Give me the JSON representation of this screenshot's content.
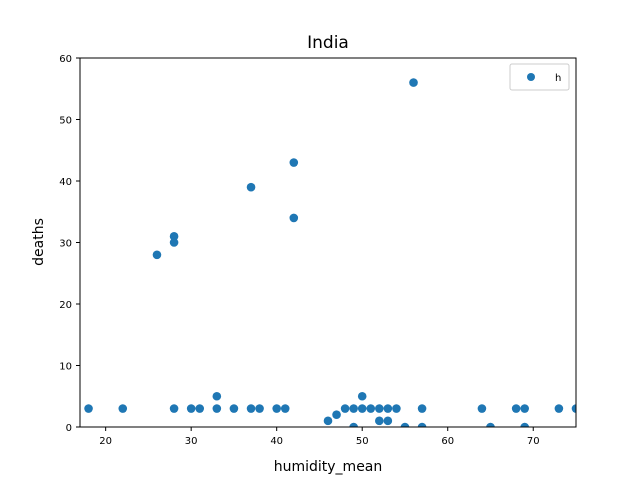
{
  "chart_data": {
    "type": "scatter",
    "title": "India",
    "xlabel": "humidity_mean",
    "ylabel": "deaths",
    "xlim": [
      17,
      75
    ],
    "ylim": [
      0,
      60
    ],
    "xticks": [
      "20",
      "30",
      "40",
      "50",
      "60",
      "70"
    ],
    "yticks": [
      "0",
      "10",
      "20",
      "30",
      "40",
      "50",
      "60"
    ],
    "grid": false,
    "legend": "top-right",
    "series": [
      {
        "name": "h",
        "color": "#1f77b4",
        "points": [
          [
            18,
            3
          ],
          [
            22,
            3
          ],
          [
            26,
            28
          ],
          [
            28,
            31
          ],
          [
            28,
            30
          ],
          [
            28,
            3
          ],
          [
            30,
            3
          ],
          [
            31,
            3
          ],
          [
            33,
            5
          ],
          [
            33,
            3
          ],
          [
            35,
            3
          ],
          [
            37,
            39
          ],
          [
            37,
            3
          ],
          [
            38,
            3
          ],
          [
            40,
            3
          ],
          [
            41,
            3
          ],
          [
            42,
            43
          ],
          [
            42,
            34
          ],
          [
            46,
            1
          ],
          [
            47,
            2
          ],
          [
            48,
            3
          ],
          [
            49,
            3
          ],
          [
            49,
            0
          ],
          [
            50,
            5
          ],
          [
            50,
            3
          ],
          [
            51,
            3
          ],
          [
            52,
            3
          ],
          [
            52,
            1
          ],
          [
            53,
            3
          ],
          [
            53,
            1
          ],
          [
            54,
            3
          ],
          [
            55,
            0
          ],
          [
            56,
            56
          ],
          [
            57,
            3
          ],
          [
            57,
            0
          ],
          [
            64,
            3
          ],
          [
            65,
            0
          ],
          [
            68,
            3
          ],
          [
            69,
            3
          ],
          [
            69,
            0
          ],
          [
            73,
            3
          ],
          [
            75,
            3
          ]
        ]
      }
    ]
  }
}
